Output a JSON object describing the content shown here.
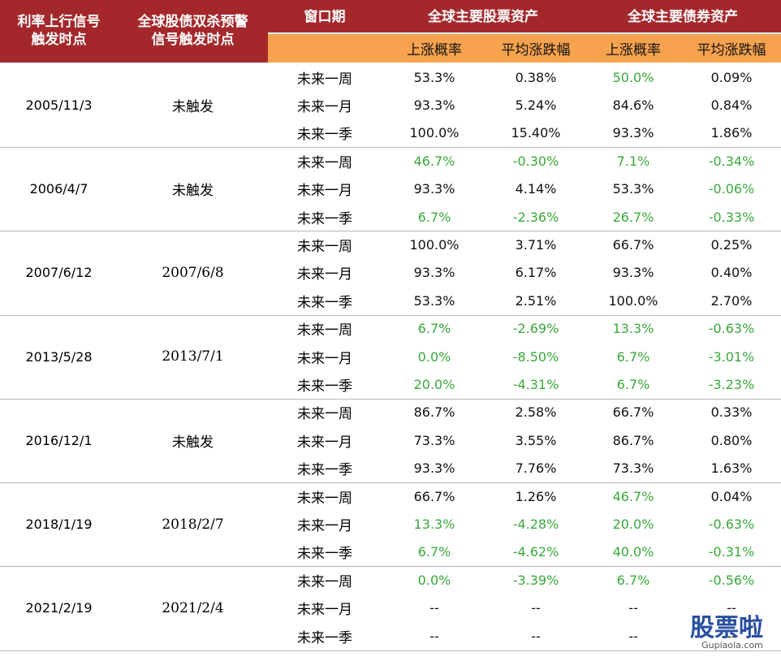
{
  "header": {
    "col1": [
      "利率上行信号",
      "触发时点"
    ],
    "col2": [
      "全球股债双杀预警",
      "信号触发时点"
    ],
    "col3": "窗口期",
    "group1": "全球主要股票资产",
    "group2": "全球主要债券资产",
    "sub": [
      "上涨概率",
      "平均涨跌幅",
      "上涨概率",
      "平均涨跌幅"
    ]
  },
  "colors": {
    "normal": "#111111",
    "highlight": "#3aa83a",
    "header": "#a4282b",
    "subheader": "#f6a24e"
  },
  "table": {
    "groups": [
      {
        "date": "2005/11/3",
        "signal": "未触发",
        "rows": [
          {
            "window": "未来一周",
            "cells": [
              "53.3%",
              "0.38%",
              "50.0%",
              "0.09%"
            ],
            "green": [
              false,
              false,
              true,
              false
            ]
          },
          {
            "window": "未来一月",
            "cells": [
              "93.3%",
              "5.24%",
              "84.6%",
              "0.84%"
            ],
            "green": [
              false,
              false,
              false,
              false
            ]
          },
          {
            "window": "未来一季",
            "cells": [
              "100.0%",
              "15.40%",
              "93.3%",
              "1.86%"
            ],
            "green": [
              false,
              false,
              false,
              false
            ]
          }
        ]
      },
      {
        "date": "2006/4/7",
        "signal": "未触发",
        "rows": [
          {
            "window": "未来一周",
            "cells": [
              "46.7%",
              "-0.30%",
              "7.1%",
              "-0.34%"
            ],
            "green": [
              true,
              true,
              true,
              true
            ]
          },
          {
            "window": "未来一月",
            "cells": [
              "93.3%",
              "4.14%",
              "53.3%",
              "-0.06%"
            ],
            "green": [
              false,
              false,
              false,
              true
            ]
          },
          {
            "window": "未来一季",
            "cells": [
              "6.7%",
              "-2.36%",
              "26.7%",
              "-0.33%"
            ],
            "green": [
              true,
              true,
              true,
              true
            ]
          }
        ]
      },
      {
        "date": "2007/6/12",
        "signal": "2007/6/8",
        "rows": [
          {
            "window": "未来一周",
            "cells": [
              "100.0%",
              "3.71%",
              "66.7%",
              "0.25%"
            ],
            "green": [
              false,
              false,
              false,
              false
            ]
          },
          {
            "window": "未来一月",
            "cells": [
              "93.3%",
              "6.17%",
              "93.3%",
              "0.40%"
            ],
            "green": [
              false,
              false,
              false,
              false
            ]
          },
          {
            "window": "未来一季",
            "cells": [
              "53.3%",
              "2.51%",
              "100.0%",
              "2.70%"
            ],
            "green": [
              false,
              false,
              false,
              false
            ]
          }
        ]
      },
      {
        "date": "2013/5/28",
        "signal": "2013/7/1",
        "rows": [
          {
            "window": "未来一周",
            "cells": [
              "6.7%",
              "-2.69%",
              "13.3%",
              "-0.63%"
            ],
            "green": [
              true,
              true,
              true,
              true
            ]
          },
          {
            "window": "未来一月",
            "cells": [
              "0.0%",
              "-8.50%",
              "6.7%",
              "-3.01%"
            ],
            "green": [
              true,
              true,
              true,
              true
            ]
          },
          {
            "window": "未来一季",
            "cells": [
              "20.0%",
              "-4.31%",
              "6.7%",
              "-3.23%"
            ],
            "green": [
              true,
              true,
              true,
              true
            ]
          }
        ]
      },
      {
        "date": "2016/12/1",
        "signal": "未触发",
        "rows": [
          {
            "window": "未来一周",
            "cells": [
              "86.7%",
              "2.58%",
              "66.7%",
              "0.33%"
            ],
            "green": [
              false,
              false,
              false,
              false
            ]
          },
          {
            "window": "未来一月",
            "cells": [
              "73.3%",
              "3.55%",
              "86.7%",
              "0.80%"
            ],
            "green": [
              false,
              false,
              false,
              false
            ]
          },
          {
            "window": "未来一季",
            "cells": [
              "93.3%",
              "7.76%",
              "73.3%",
              "1.63%"
            ],
            "green": [
              false,
              false,
              false,
              false
            ]
          }
        ]
      },
      {
        "date": "2018/1/19",
        "signal": "2018/2/7",
        "rows": [
          {
            "window": "未来一周",
            "cells": [
              "66.7%",
              "1.26%",
              "46.7%",
              "0.04%"
            ],
            "green": [
              false,
              false,
              true,
              false
            ]
          },
          {
            "window": "未来一月",
            "cells": [
              "13.3%",
              "-4.28%",
              "20.0%",
              "-0.63%"
            ],
            "green": [
              true,
              true,
              true,
              true
            ]
          },
          {
            "window": "未来一季",
            "cells": [
              "6.7%",
              "-4.62%",
              "40.0%",
              "-0.31%"
            ],
            "green": [
              true,
              true,
              true,
              true
            ]
          }
        ]
      },
      {
        "date": "2021/2/19",
        "signal": "2021/2/4",
        "rows": [
          {
            "window": "未来一周",
            "cells": [
              "0.0%",
              "-3.39%",
              "6.7%",
              "-0.56%"
            ],
            "green": [
              true,
              true,
              true,
              true
            ]
          },
          {
            "window": "未来一月",
            "cells": [
              "--",
              "--",
              "--",
              "--"
            ],
            "green": [
              false,
              false,
              false,
              false
            ]
          },
          {
            "window": "未来一季",
            "cells": [
              "--",
              "--",
              "--",
              "--"
            ],
            "green": [
              false,
              false,
              false,
              false
            ]
          }
        ]
      }
    ]
  },
  "watermark": {
    "logo": "股票啦",
    "url": "Gupiaola.com"
  }
}
